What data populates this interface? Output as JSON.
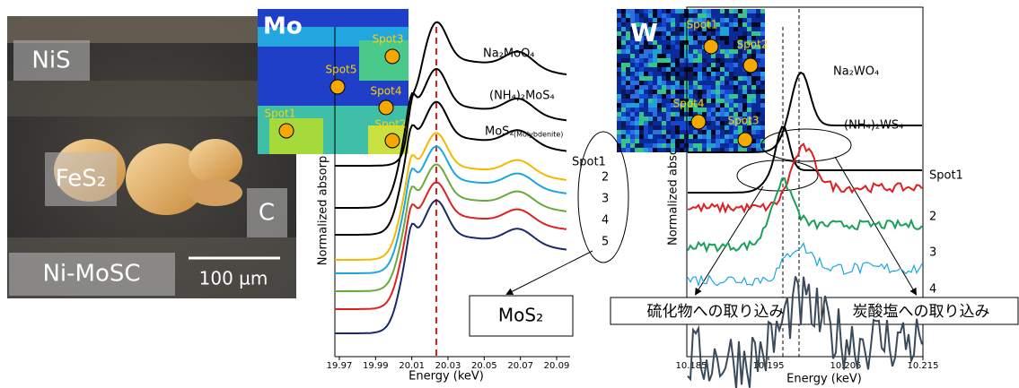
{
  "micrograph": {
    "labels": [
      "NiS",
      "FeS₂",
      "C",
      "Ni-MoSC"
    ],
    "scale_bar": "100 µm"
  },
  "mo_map": {
    "element": "Mo",
    "spots": [
      "Spot3",
      "Spot5",
      "Spot4",
      "Spot1",
      "Spot2"
    ]
  },
  "mo_chart": {
    "xlabel": "Energy (keV)",
    "ylabel": "Normalized absorp",
    "xlim": [
      19.97,
      20.09
    ],
    "xticks": [
      19.97,
      19.99,
      20.01,
      20.03,
      20.05,
      20.07,
      20.09
    ],
    "standards": [
      "Na₂MoO₄",
      "(NH₄)₂MoS₄",
      "MoS₂"
    ],
    "standard_note": "(Molybdenite)",
    "spot_labels": [
      "Spot1",
      "2",
      "3",
      "4",
      "5"
    ],
    "callout": "MoS₂"
  },
  "w_map": {
    "element": "W",
    "spots": [
      "Spot1",
      "Spot2",
      "Spot4",
      "Spot3"
    ]
  },
  "w_chart": {
    "xlabel": "Energy (keV)",
    "ylabel": "Normalized absc",
    "xlim": [
      10.185,
      10.215
    ],
    "xticks": [
      10.185,
      10.195,
      10.205,
      10.215
    ],
    "standards": [
      "Na₂WO₄",
      "(NH₄)₂WS₄"
    ],
    "spot_labels": [
      "Spot1",
      "2",
      "3",
      "4"
    ],
    "callouts": [
      "硫化物への取り込み",
      "炭酸塩への取り込み"
    ]
  }
}
